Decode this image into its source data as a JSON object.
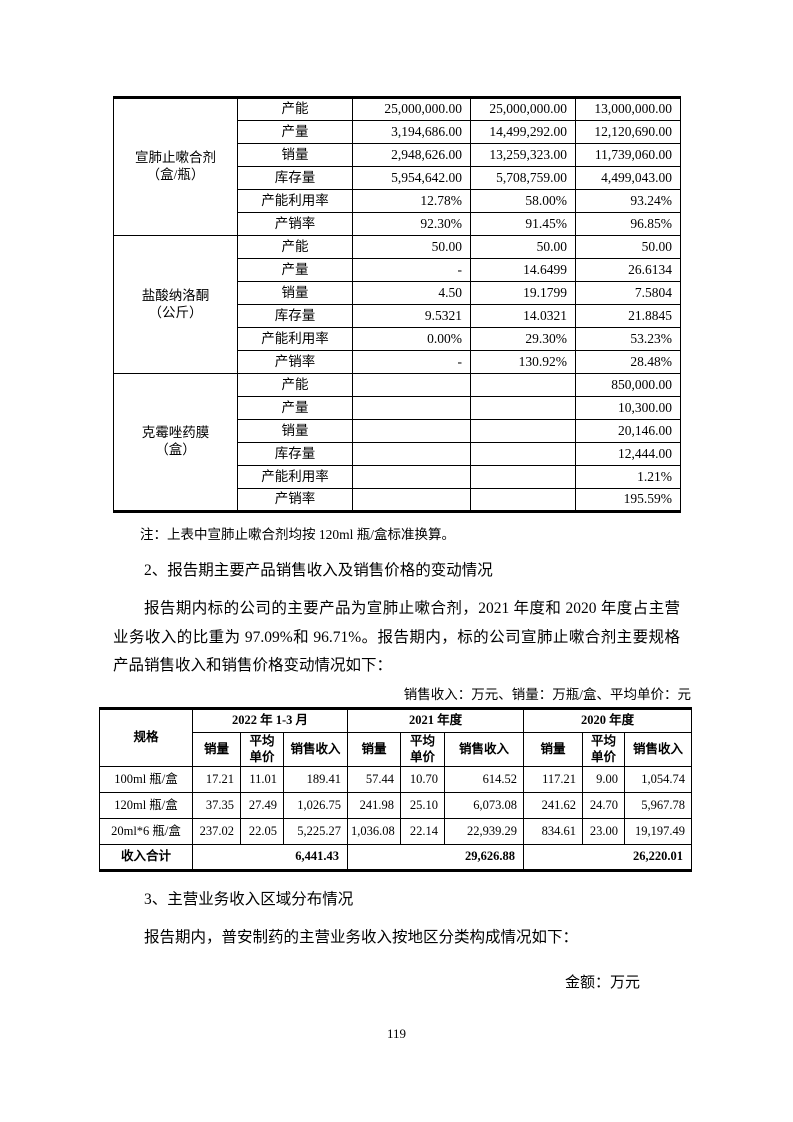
{
  "page": {
    "number": "119"
  },
  "capacity_table": {
    "groups": [
      {
        "product_name": "宣肺止嗽合剂",
        "product_unit": "（盒/瓶）",
        "rows": [
          {
            "metric": "产能",
            "values": [
              "25,000,000.00",
              "25,000,000.00",
              "13,000,000.00"
            ]
          },
          {
            "metric": "产量",
            "values": [
              "3,194,686.00",
              "14,499,292.00",
              "12,120,690.00"
            ]
          },
          {
            "metric": "销量",
            "values": [
              "2,948,626.00",
              "13,259,323.00",
              "11,739,060.00"
            ]
          },
          {
            "metric": "库存量",
            "values": [
              "5,954,642.00",
              "5,708,759.00",
              "4,499,043.00"
            ]
          },
          {
            "metric": "产能利用率",
            "values": [
              "12.78%",
              "58.00%",
              "93.24%"
            ]
          },
          {
            "metric": "产销率",
            "values": [
              "92.30%",
              "91.45%",
              "96.85%"
            ]
          }
        ]
      },
      {
        "product_name": "盐酸纳洛酮",
        "product_unit": "（公斤）",
        "rows": [
          {
            "metric": "产能",
            "values": [
              "50.00",
              "50.00",
              "50.00"
            ]
          },
          {
            "metric": "产量",
            "values": [
              "-",
              "14.6499",
              "26.6134"
            ]
          },
          {
            "metric": "销量",
            "values": [
              "4.50",
              "19.1799",
              "7.5804"
            ]
          },
          {
            "metric": "库存量",
            "values": [
              "9.5321",
              "14.0321",
              "21.8845"
            ]
          },
          {
            "metric": "产能利用率",
            "values": [
              "0.00%",
              "29.30%",
              "53.23%"
            ]
          },
          {
            "metric": "产销率",
            "values": [
              "-",
              "130.92%",
              "28.48%"
            ]
          }
        ]
      },
      {
        "product_name": "克霉唑药膜",
        "product_unit": "（盒）",
        "rows": [
          {
            "metric": "产能",
            "values": [
              "",
              "",
              "850,000.00"
            ]
          },
          {
            "metric": "产量",
            "values": [
              "",
              "",
              "10,300.00"
            ]
          },
          {
            "metric": "销量",
            "values": [
              "",
              "",
              "20,146.00"
            ]
          },
          {
            "metric": "库存量",
            "values": [
              "",
              "",
              "12,444.00"
            ]
          },
          {
            "metric": "产能利用率",
            "values": [
              "",
              "",
              "1.21%"
            ]
          },
          {
            "metric": "产销率",
            "values": [
              "",
              "",
              "195.59%"
            ]
          }
        ]
      }
    ],
    "note": "注：上表中宣肺止嗽合剂均按 120ml 瓶/盒标准换算。"
  },
  "section2": {
    "heading": "2、报告期主要产品销售收入及销售价格的变动情况",
    "paragraph": "报告期内标的公司的主要产品为宣肺止嗽合剂，2021 年度和 2020 年度占主营业务收入的比重为 97.09%和 96.71%。报告期内，标的公司宣肺止嗽合剂主要规格产品销售收入和销售价格变动情况如下：",
    "units_note": "销售收入：万元、销量：万瓶/盒、平均单价：元"
  },
  "sales_table": {
    "spec_header": "规格",
    "period_headers": [
      "2022 年 1-3 月",
      "2021 年度",
      "2020 年度"
    ],
    "sub_headers": [
      "销量",
      "平均单价",
      "销售收入"
    ],
    "rows": [
      {
        "spec": "100ml 瓶/盒",
        "values": [
          "17.21",
          "11.01",
          "189.41",
          "57.44",
          "10.70",
          "614.52",
          "117.21",
          "9.00",
          "1,054.74"
        ]
      },
      {
        "spec": "120ml 瓶/盒",
        "values": [
          "37.35",
          "27.49",
          "1,026.75",
          "241.98",
          "25.10",
          "6,073.08",
          "241.62",
          "24.70",
          "5,967.78"
        ]
      },
      {
        "spec": "20ml*6 瓶/盒",
        "values": [
          "237.02",
          "22.05",
          "5,225.27",
          "1,036.08",
          "22.14",
          "22,939.29",
          "834.61",
          "23.00",
          "19,197.49"
        ]
      }
    ],
    "total_row": {
      "label": "收入合计",
      "values": [
        "6,441.43",
        "29,626.88",
        "26,220.01"
      ]
    }
  },
  "section3": {
    "heading": "3、主营业务收入区域分布情况",
    "paragraph": "报告期内，普安制药的主营业务收入按地区分类构成情况如下：",
    "unit_note": "金额：万元"
  }
}
